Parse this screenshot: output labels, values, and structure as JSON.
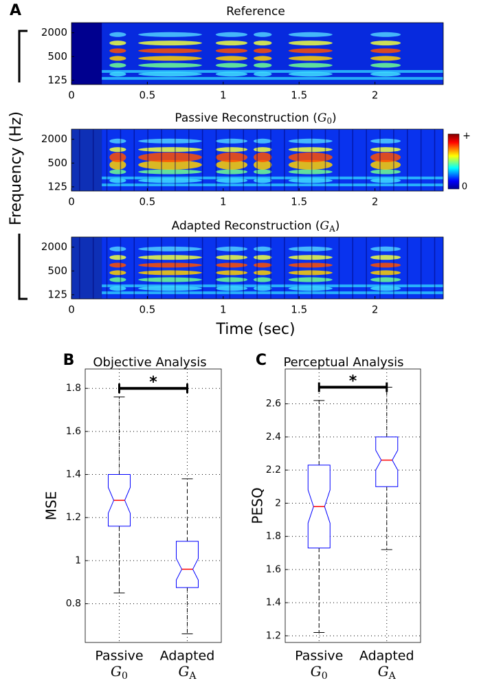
{
  "figure": {
    "panel": "A",
    "xlabel": "Time (sec)",
    "ylabel": "Frequency (Hz)",
    "colorbar": {
      "max_label": "+",
      "min_label": "0"
    }
  },
  "chart_data": [
    {
      "type": "spectrogram",
      "title": "Reference",
      "xlim": [
        0,
        2.45
      ],
      "xticks": [
        0,
        0.5,
        1,
        1.5,
        2
      ],
      "ylim": [
        98,
        3600
      ],
      "yticks": [
        125,
        500,
        2000
      ],
      "log_y": true
    },
    {
      "type": "spectrogram",
      "title": {
        "prefix": "Passive Reconstruction (",
        "symbol": "G",
        "subscript": "0",
        "suffix": ")"
      },
      "xlim": [
        0,
        2.45
      ],
      "xticks": [
        0,
        0.5,
        1,
        1.5,
        2
      ],
      "ylim": [
        98,
        3600
      ],
      "yticks": [
        125,
        500,
        2000
      ],
      "log_y": true
    },
    {
      "type": "spectrogram",
      "title": {
        "prefix": "Adapted Reconstruction (",
        "symbol": "G",
        "subscript": "A",
        "suffix": ")"
      },
      "xlim": [
        0,
        2.45
      ],
      "xticks": [
        0,
        0.5,
        1,
        1.5,
        2
      ],
      "ylim": [
        98,
        3600
      ],
      "yticks": [
        125,
        500,
        2000
      ],
      "log_y": true
    },
    {
      "type": "box",
      "panel": "B",
      "title": "Objective Analysis",
      "ylabel": "MSE",
      "categories": [
        "Passive",
        "Adapted"
      ],
      "category_symbols": [
        {
          "symbol": "G",
          "subscript": "0"
        },
        {
          "symbol": "G",
          "subscript": "A"
        }
      ],
      "boxes": [
        {
          "whisker_low": 0.85,
          "q1": 1.16,
          "notch_low": 1.22,
          "median": 1.28,
          "notch_high": 1.34,
          "q3": 1.4,
          "whisker_high": 1.76
        },
        {
          "whisker_low": 0.66,
          "q1": 0.875,
          "notch_low": 0.91,
          "median": 0.96,
          "notch_high": 1.01,
          "q3": 1.09,
          "whisker_high": 1.38
        }
      ],
      "ylim": [
        0.62,
        1.89
      ],
      "yticks": [
        0.8,
        1,
        1.2,
        1.4,
        1.6,
        1.8
      ],
      "grid": true,
      "significance": {
        "value": 1.8,
        "label": "*"
      },
      "box_color": "#0000ff",
      "median_color": "#ff0000"
    },
    {
      "type": "box",
      "panel": "C",
      "title": "Perceptual Analysis",
      "ylabel": "PESQ",
      "categories": [
        "Passive",
        "Adapted"
      ],
      "category_symbols": [
        {
          "symbol": "G",
          "subscript": "0"
        },
        {
          "symbol": "G",
          "subscript": "A"
        }
      ],
      "boxes": [
        {
          "whisker_low": 1.22,
          "q1": 1.73,
          "notch_low": 1.88,
          "median": 1.98,
          "notch_high": 2.08,
          "q3": 2.23,
          "whisker_high": 2.62
        },
        {
          "whisker_low": 1.72,
          "q1": 2.1,
          "notch_low": 2.2,
          "median": 2.26,
          "notch_high": 2.32,
          "q3": 2.4,
          "whisker_high": 2.7
        }
      ],
      "ylim": [
        1.16,
        2.81
      ],
      "yticks": [
        1.2,
        1.4,
        1.6,
        1.8,
        2,
        2.2,
        2.4,
        2.6
      ],
      "grid": true,
      "significance": {
        "value": 2.7,
        "label": "*"
      },
      "box_color": "#0000ff",
      "median_color": "#ff0000"
    }
  ]
}
